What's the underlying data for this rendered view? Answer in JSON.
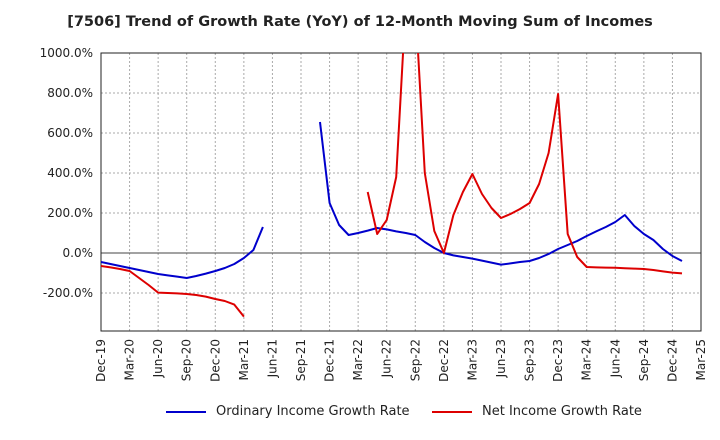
{
  "chart_data": {
    "type": "line",
    "title": "[7506]  Trend of Growth Rate (YoY) of 12-Month Moving Sum of Incomes",
    "x_tick_labels": [
      "Dec-19",
      "Mar-20",
      "Jun-20",
      "Sep-20",
      "Dec-20",
      "Mar-21",
      "Jun-21",
      "Sep-21",
      "Dec-21",
      "Mar-22",
      "Jun-22",
      "Sep-22",
      "Dec-22",
      "Mar-23",
      "Jun-23",
      "Sep-23",
      "Dec-23",
      "Mar-24",
      "Jun-24",
      "Sep-24",
      "Dec-24",
      "Mar-25"
    ],
    "y_tick_labels": [
      "1000.0%",
      "800.0%",
      "600.0%",
      "400.0%",
      "200.0%",
      "0.0%",
      "-200.0%"
    ],
    "y_tick_values": [
      1000,
      800,
      600,
      400,
      200,
      0,
      -200
    ],
    "ylim": [
      -390,
      1000
    ],
    "grid": true,
    "legend_position": "bottom",
    "series": [
      {
        "name": "Ordinary Income Growth Rate",
        "color": "#0000cc",
        "points": [
          [
            "Dec-19",
            -45
          ],
          [
            "Jan-20",
            -55
          ],
          [
            "Feb-20",
            -65
          ],
          [
            "Mar-20",
            -75
          ],
          [
            "Apr-20",
            -85
          ],
          [
            "May-20",
            -95
          ],
          [
            "Jun-20",
            -105
          ],
          [
            "Jul-20",
            -112
          ],
          [
            "Aug-20",
            -118
          ],
          [
            "Sep-20",
            -125
          ],
          [
            "Oct-20",
            -115
          ],
          [
            "Nov-20",
            -103
          ],
          [
            "Dec-20",
            -90
          ],
          [
            "Jan-21",
            -75
          ],
          [
            "Feb-21",
            -55
          ],
          [
            "Mar-21",
            -25
          ],
          [
            "Apr-21",
            15
          ],
          [
            "May-21",
            130
          ],
          [
            "Nov-21",
            655
          ],
          [
            "Dec-21",
            250
          ],
          [
            "Jan-22",
            140
          ],
          [
            "Feb-22",
            90
          ],
          [
            "Mar-22",
            100
          ],
          [
            "Apr-22",
            112
          ],
          [
            "May-22",
            125
          ],
          [
            "Jun-22",
            118
          ],
          [
            "Jul-22",
            108
          ],
          [
            "Aug-22",
            100
          ],
          [
            "Sep-22",
            90
          ],
          [
            "Oct-22",
            55
          ],
          [
            "Nov-22",
            25
          ],
          [
            "Dec-22",
            0
          ],
          [
            "Jan-23",
            -12
          ],
          [
            "Feb-23",
            -20
          ],
          [
            "Mar-23",
            -28
          ],
          [
            "Apr-23",
            -38
          ],
          [
            "May-23",
            -48
          ],
          [
            "Jun-23",
            -58
          ],
          [
            "Jul-23",
            -52
          ],
          [
            "Aug-23",
            -45
          ],
          [
            "Sep-23",
            -40
          ],
          [
            "Oct-23",
            -25
          ],
          [
            "Nov-23",
            -5
          ],
          [
            "Dec-23",
            20
          ],
          [
            "Jan-24",
            40
          ],
          [
            "Feb-24",
            60
          ],
          [
            "Mar-24",
            85
          ],
          [
            "Apr-24",
            108
          ],
          [
            "May-24",
            130
          ],
          [
            "Jun-24",
            155
          ],
          [
            "Jul-24",
            190
          ],
          [
            "Aug-24",
            135
          ],
          [
            "Sep-24",
            95
          ],
          [
            "Oct-24",
            65
          ],
          [
            "Nov-24",
            20
          ],
          [
            "Dec-24",
            -15
          ],
          [
            "Jan-25",
            -40
          ]
        ]
      },
      {
        "name": "Net Income Growth Rate",
        "color": "#dd0000",
        "points": [
          [
            "Dec-19",
            -65
          ],
          [
            "Jan-20",
            -72
          ],
          [
            "Feb-20",
            -80
          ],
          [
            "Mar-20",
            -90
          ],
          [
            "Apr-20",
            -125
          ],
          [
            "May-20",
            -160
          ],
          [
            "Jun-20",
            -198
          ],
          [
            "Jul-20",
            -200
          ],
          [
            "Aug-20",
            -202
          ],
          [
            "Sep-20",
            -205
          ],
          [
            "Oct-20",
            -210
          ],
          [
            "Nov-20",
            -218
          ],
          [
            "Dec-20",
            -230
          ],
          [
            "Jan-21",
            -240
          ],
          [
            "Feb-21",
            -258
          ],
          [
            "Mar-21",
            -318
          ],
          [
            "Apr-22",
            305
          ],
          [
            "May-22",
            95
          ],
          [
            "Jun-22",
            165
          ],
          [
            "Jul-22",
            380
          ],
          [
            "Aug-22",
            1250
          ],
          [
            "Sep-22",
            1250
          ],
          [
            "Oct-22",
            400
          ],
          [
            "Nov-22",
            110
          ],
          [
            "Dec-22",
            0
          ],
          [
            "Jan-23",
            190
          ],
          [
            "Feb-23",
            305
          ],
          [
            "Mar-23",
            395
          ],
          [
            "Apr-23",
            295
          ],
          [
            "May-23",
            225
          ],
          [
            "Jun-23",
            175
          ],
          [
            "Jul-23",
            195
          ],
          [
            "Aug-23",
            220
          ],
          [
            "Sep-23",
            250
          ],
          [
            "Oct-23",
            345
          ],
          [
            "Nov-23",
            500
          ],
          [
            "Dec-23",
            795
          ],
          [
            "Jan-24",
            95
          ],
          [
            "Feb-24",
            -20
          ],
          [
            "Mar-24",
            -70
          ],
          [
            "Apr-24",
            -72
          ],
          [
            "May-24",
            -73
          ],
          [
            "Jun-24",
            -74
          ],
          [
            "Jul-24",
            -76
          ],
          [
            "Aug-24",
            -78
          ],
          [
            "Sep-24",
            -80
          ],
          [
            "Oct-24",
            -85
          ],
          [
            "Nov-24",
            -92
          ],
          [
            "Dec-24",
            -98
          ],
          [
            "Jan-25",
            -102
          ]
        ]
      }
    ]
  }
}
